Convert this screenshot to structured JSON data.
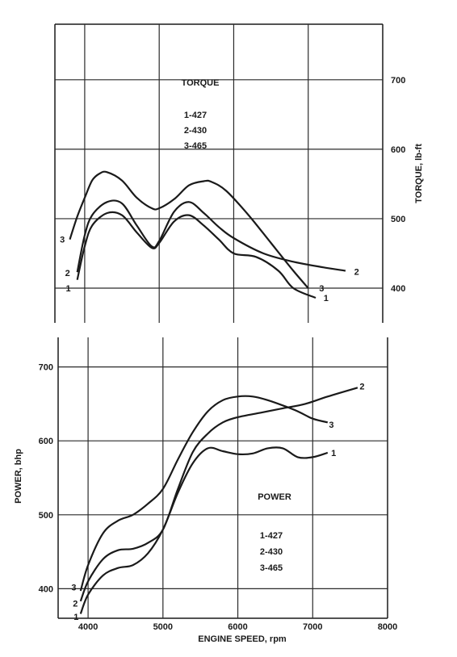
{
  "chart_data": [
    {
      "type": "line",
      "title": "TORQUE",
      "ylabel": "TORQUE, lb-ft",
      "xlim": [
        3600,
        8000
      ],
      "ylim": [
        350,
        780
      ],
      "y_ticks": [
        "400",
        "500",
        "600",
        "700"
      ],
      "legend": [
        "1-427",
        "2-430",
        "3-465"
      ],
      "series": [
        {
          "name": "1",
          "x": [
            3900,
            4000,
            4100,
            4300,
            4500,
            4700,
            4900,
            5000,
            5200,
            5400,
            5600,
            5800,
            6000,
            6300,
            6600,
            6800,
            7100
          ],
          "y": [
            412,
            460,
            490,
            508,
            505,
            480,
            458,
            465,
            496,
            505,
            490,
            470,
            450,
            445,
            425,
            400,
            386
          ]
        },
        {
          "name": "2",
          "x": [
            3900,
            4000,
            4100,
            4300,
            4500,
            4700,
            4900,
            5000,
            5200,
            5400,
            5600,
            5800,
            6000,
            6400,
            6800,
            7200,
            7500
          ],
          "y": [
            423,
            476,
            505,
            524,
            522,
            490,
            460,
            468,
            510,
            524,
            508,
            488,
            472,
            450,
            438,
            430,
            425
          ]
        },
        {
          "name": "3",
          "x": [
            3800,
            3900,
            4000,
            4100,
            4200,
            4300,
            4500,
            4700,
            4900,
            5000,
            5200,
            5400,
            5600,
            5700,
            5900,
            6200,
            6500,
            6800,
            7000
          ],
          "y": [
            470,
            503,
            530,
            555,
            565,
            567,
            555,
            530,
            515,
            515,
            528,
            548,
            554,
            553,
            540,
            505,
            465,
            425,
            400
          ]
        }
      ],
      "curve_labels": [
        {
          "text": "1",
          "x": 3780,
          "y": 400
        },
        {
          "text": "2",
          "x": 3770,
          "y": 422
        },
        {
          "text": "3",
          "x": 3700,
          "y": 470
        },
        {
          "text": "1",
          "x": 7240,
          "y": 386
        },
        {
          "text": "2",
          "x": 7650,
          "y": 424
        },
        {
          "text": "3",
          "x": 7180,
          "y": 400
        }
      ]
    },
    {
      "type": "line",
      "title": "POWER",
      "xlabel": "ENGINE SPEED, rpm",
      "ylabel": "POWER, bhp",
      "xlim": [
        3600,
        8000
      ],
      "ylim": [
        360,
        740
      ],
      "x_ticks": [
        "4000",
        "5000",
        "6000",
        "7000",
        "8000"
      ],
      "y_ticks": [
        "400",
        "500",
        "600",
        "700"
      ],
      "legend": [
        "1-427",
        "2-430",
        "3-465"
      ],
      "series": [
        {
          "name": "1",
          "x": [
            3900,
            4000,
            4200,
            4400,
            4600,
            4800,
            5000,
            5200,
            5400,
            5600,
            5800,
            6000,
            6200,
            6400,
            6600,
            6800,
            7000,
            7200
          ],
          "y": [
            366,
            392,
            418,
            428,
            432,
            448,
            480,
            530,
            570,
            590,
            586,
            582,
            583,
            590,
            590,
            578,
            578,
            584
          ]
        },
        {
          "name": "2",
          "x": [
            3900,
            4000,
            4200,
            4400,
            4600,
            4800,
            5000,
            5200,
            5400,
            5600,
            5800,
            6000,
            6300,
            6600,
            6900,
            7200,
            7600
          ],
          "y": [
            383,
            410,
            440,
            452,
            454,
            462,
            480,
            535,
            585,
            610,
            625,
            632,
            638,
            644,
            650,
            660,
            672
          ]
        },
        {
          "name": "3",
          "x": [
            3900,
            4000,
            4200,
            4400,
            4600,
            4800,
            5000,
            5200,
            5400,
            5600,
            5800,
            6000,
            6200,
            6400,
            6600,
            6800,
            7000,
            7200
          ],
          "y": [
            397,
            432,
            475,
            492,
            500,
            515,
            535,
            575,
            612,
            640,
            655,
            660,
            660,
            655,
            648,
            640,
            630,
            625
          ]
        }
      ],
      "curve_labels": [
        {
          "text": "1",
          "x": 3840,
          "y": 362
        },
        {
          "text": "2",
          "x": 3830,
          "y": 380
        },
        {
          "text": "3",
          "x": 3810,
          "y": 402
        },
        {
          "text": "1",
          "x": 7280,
          "y": 584
        },
        {
          "text": "2",
          "x": 7660,
          "y": 674
        },
        {
          "text": "3",
          "x": 7250,
          "y": 622
        }
      ]
    }
  ]
}
